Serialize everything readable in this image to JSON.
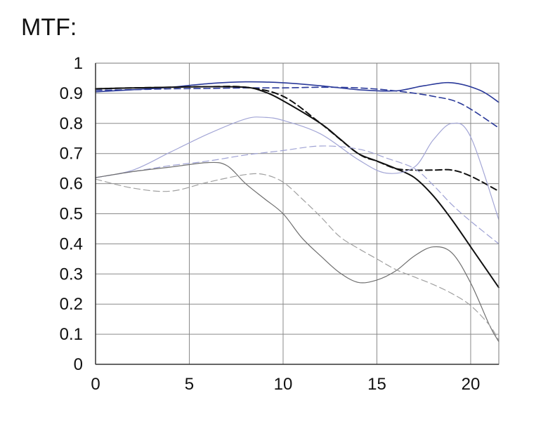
{
  "title": "MTF:",
  "chart_data": {
    "type": "line",
    "title": "MTF:",
    "xlabel": "",
    "ylabel": "",
    "xlim": [
      0,
      21.5
    ],
    "ylim": [
      0,
      1
    ],
    "x_ticks": [
      "0",
      "5",
      "10",
      "15",
      "20"
    ],
    "y_ticks": [
      "0",
      "0.1",
      "0.2",
      "0.3",
      "0.4",
      "0.5",
      "0.6",
      "0.7",
      "0.8",
      "0.9",
      "1"
    ],
    "grid": true,
    "series": [
      {
        "color": "#2b3a9a",
        "style": "solid",
        "width": 1.6,
        "points": [
          [
            0,
            0.905
          ],
          [
            2,
            0.912
          ],
          [
            4,
            0.92
          ],
          [
            6,
            0.932
          ],
          [
            8,
            0.938
          ],
          [
            10,
            0.935
          ],
          [
            12,
            0.925
          ],
          [
            14,
            0.912
          ],
          [
            16,
            0.908
          ],
          [
            17.5,
            0.925
          ],
          [
            19,
            0.935
          ],
          [
            20.5,
            0.91
          ],
          [
            21.5,
            0.87
          ]
        ]
      },
      {
        "color": "#2b3a9a",
        "style": "dashed",
        "width": 1.6,
        "points": [
          [
            0,
            0.91
          ],
          [
            2,
            0.912
          ],
          [
            4,
            0.915
          ],
          [
            6,
            0.916
          ],
          [
            8,
            0.918
          ],
          [
            10,
            0.918
          ],
          [
            12,
            0.92
          ],
          [
            14,
            0.918
          ],
          [
            16,
            0.908
          ],
          [
            18,
            0.89
          ],
          [
            19.5,
            0.865
          ],
          [
            21.5,
            0.785
          ]
        ]
      },
      {
        "color": "#111111",
        "style": "solid",
        "width": 2,
        "points": [
          [
            0,
            0.915
          ],
          [
            2,
            0.918
          ],
          [
            4,
            0.92
          ],
          [
            6,
            0.922
          ],
          [
            8,
            0.92
          ],
          [
            9,
            0.905
          ],
          [
            10,
            0.875
          ],
          [
            12,
            0.8
          ],
          [
            13,
            0.75
          ],
          [
            14,
            0.7
          ],
          [
            15,
            0.675
          ],
          [
            16,
            0.65
          ],
          [
            17,
            0.62
          ],
          [
            18,
            0.56
          ],
          [
            19,
            0.48
          ],
          [
            20,
            0.39
          ],
          [
            21,
            0.3
          ],
          [
            21.5,
            0.255
          ]
        ]
      },
      {
        "color": "#111111",
        "style": "dashed",
        "width": 2,
        "points": [
          [
            0,
            0.915
          ],
          [
            2,
            0.918
          ],
          [
            4,
            0.92
          ],
          [
            6,
            0.922
          ],
          [
            8,
            0.92
          ],
          [
            10,
            0.89
          ],
          [
            12,
            0.8
          ],
          [
            14,
            0.7
          ],
          [
            15,
            0.675
          ],
          [
            16,
            0.65
          ],
          [
            17,
            0.645
          ],
          [
            18,
            0.645
          ],
          [
            19,
            0.645
          ],
          [
            20,
            0.625
          ],
          [
            21.5,
            0.575
          ]
        ]
      },
      {
        "color": "#a3a6d6",
        "style": "solid",
        "width": 1.2,
        "points": [
          [
            0,
            0.62
          ],
          [
            2,
            0.645
          ],
          [
            4,
            0.705
          ],
          [
            6,
            0.765
          ],
          [
            8,
            0.815
          ],
          [
            9,
            0.82
          ],
          [
            10,
            0.81
          ],
          [
            12,
            0.765
          ],
          [
            14,
            0.68
          ],
          [
            15.5,
            0.635
          ],
          [
            17,
            0.655
          ],
          [
            18,
            0.745
          ],
          [
            19,
            0.8
          ],
          [
            20,
            0.755
          ],
          [
            21.5,
            0.48
          ]
        ]
      },
      {
        "color": "#9fa2d4",
        "style": "dashed",
        "width": 1.2,
        "points": [
          [
            0,
            0.62
          ],
          [
            2,
            0.64
          ],
          [
            4,
            0.66
          ],
          [
            6,
            0.675
          ],
          [
            8,
            0.695
          ],
          [
            10,
            0.71
          ],
          [
            12,
            0.725
          ],
          [
            14,
            0.715
          ],
          [
            15.5,
            0.685
          ],
          [
            17,
            0.65
          ],
          [
            18,
            0.595
          ],
          [
            19,
            0.53
          ],
          [
            20,
            0.475
          ],
          [
            21.5,
            0.4
          ]
        ]
      },
      {
        "color": "#6f6f6f",
        "style": "solid",
        "width": 1.2,
        "points": [
          [
            0,
            0.62
          ],
          [
            2,
            0.64
          ],
          [
            4,
            0.655
          ],
          [
            6,
            0.67
          ],
          [
            7,
            0.66
          ],
          [
            8,
            0.6
          ],
          [
            9,
            0.55
          ],
          [
            10,
            0.5
          ],
          [
            11,
            0.42
          ],
          [
            12,
            0.36
          ],
          [
            13,
            0.305
          ],
          [
            14,
            0.272
          ],
          [
            15,
            0.28
          ],
          [
            16,
            0.31
          ],
          [
            17,
            0.36
          ],
          [
            18,
            0.39
          ],
          [
            19,
            0.37
          ],
          [
            20,
            0.27
          ],
          [
            21,
            0.13
          ],
          [
            21.5,
            0.075
          ]
        ]
      },
      {
        "color": "#a0a0a0",
        "style": "dashed",
        "width": 1.2,
        "points": [
          [
            0,
            0.615
          ],
          [
            2,
            0.585
          ],
          [
            4,
            0.575
          ],
          [
            6,
            0.605
          ],
          [
            8,
            0.63
          ],
          [
            9,
            0.63
          ],
          [
            10,
            0.605
          ],
          [
            11,
            0.55
          ],
          [
            12,
            0.49
          ],
          [
            13,
            0.425
          ],
          [
            14,
            0.385
          ],
          [
            15,
            0.35
          ],
          [
            16,
            0.315
          ],
          [
            17,
            0.29
          ],
          [
            18,
            0.265
          ],
          [
            19,
            0.235
          ],
          [
            20,
            0.195
          ],
          [
            21,
            0.13
          ],
          [
            21.5,
            0.08
          ]
        ]
      }
    ]
  }
}
